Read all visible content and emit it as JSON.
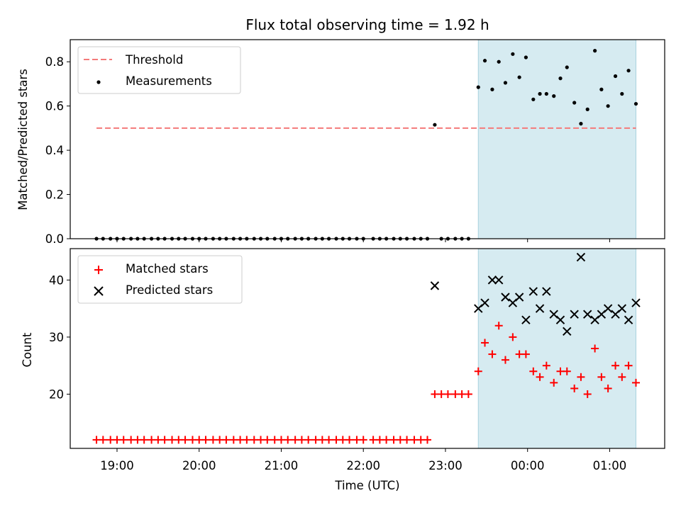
{
  "chart_data": [
    {
      "type": "scatter",
      "title": "Flux total observing time = 1.92 h",
      "xlabel": "",
      "ylabel": "Matched/Predicted stars",
      "ylim": [
        0,
        0.9
      ],
      "yticks": [
        "0.0",
        "0.2",
        "0.4",
        "0.6",
        "0.8"
      ],
      "xlim": [
        18.43,
        25.67
      ],
      "shaded_span": [
        23.4,
        25.32
      ],
      "shaded_color": "#d6ebf1",
      "legend": {
        "placement": "top-left",
        "threshold_label": "Threshold",
        "measurements_label": "Measurements"
      },
      "threshold": {
        "name": "Threshold",
        "value": 0.5,
        "x_range": [
          18.75,
          25.32
        ],
        "color": "#f47a7a"
      },
      "series": [
        {
          "name": "Measurements",
          "color": "#000000",
          "x": [
            18.75,
            18.83,
            18.92,
            19.0,
            19.08,
            19.17,
            19.25,
            19.33,
            19.42,
            19.5,
            19.58,
            19.67,
            19.75,
            19.83,
            19.92,
            20.0,
            20.08,
            20.17,
            20.25,
            20.33,
            20.42,
            20.5,
            20.58,
            20.67,
            20.75,
            20.83,
            20.92,
            21.0,
            21.08,
            21.17,
            21.25,
            21.33,
            21.42,
            21.5,
            21.58,
            21.67,
            21.75,
            21.83,
            21.92,
            22.0,
            22.12,
            22.2,
            22.28,
            22.37,
            22.45,
            22.53,
            22.62,
            22.7,
            22.78,
            22.87,
            22.95,
            23.03,
            23.12,
            23.2,
            23.28,
            23.4,
            23.48,
            23.57,
            23.65,
            23.73,
            23.82,
            23.9,
            23.98,
            24.07,
            24.15,
            24.23,
            24.32,
            24.4,
            24.48,
            24.57,
            24.65,
            24.73,
            24.82,
            24.9,
            24.98,
            25.07,
            25.15,
            25.23,
            25.32
          ],
          "y": [
            0,
            0,
            0,
            0,
            0,
            0,
            0,
            0,
            0,
            0,
            0,
            0,
            0,
            0,
            0,
            0,
            0,
            0,
            0,
            0,
            0,
            0,
            0,
            0,
            0,
            0,
            0,
            0,
            0,
            0,
            0,
            0,
            0,
            0,
            0,
            0,
            0,
            0,
            0,
            0,
            0,
            0,
            0,
            0,
            0,
            0,
            0,
            0,
            0,
            0.515,
            0,
            0,
            0,
            0,
            0,
            0.685,
            0.805,
            0.675,
            0.8,
            0.705,
            0.835,
            0.73,
            0.82,
            0.63,
            0.655,
            0.655,
            0.645,
            0.725,
            0.775,
            0.615,
            0.52,
            0.585,
            0.85,
            0.675,
            0.6,
            0.735,
            0.655,
            0.76,
            0.61
          ]
        }
      ]
    },
    {
      "type": "scatter",
      "xlabel": "Time (UTC)",
      "ylabel": "Count",
      "ylim": [
        10.5,
        45.5
      ],
      "yticks": [
        "20",
        "30",
        "40"
      ],
      "xlim": [
        18.43,
        25.67
      ],
      "xticks": [
        "19:00",
        "20:00",
        "21:00",
        "22:00",
        "23:00",
        "00:00",
        "01:00"
      ],
      "shaded_span": [
        23.4,
        25.32
      ],
      "shaded_color": "#d6ebf1",
      "legend": {
        "placement": "top-left"
      },
      "series": [
        {
          "name": "Matched stars",
          "color": "#ff0000",
          "marker": "+",
          "x": [
            18.75,
            18.83,
            18.92,
            19.0,
            19.08,
            19.17,
            19.25,
            19.33,
            19.42,
            19.5,
            19.58,
            19.67,
            19.75,
            19.83,
            19.92,
            20.0,
            20.08,
            20.17,
            20.25,
            20.33,
            20.42,
            20.5,
            20.58,
            20.67,
            20.75,
            20.83,
            20.92,
            21.0,
            21.08,
            21.17,
            21.25,
            21.33,
            21.42,
            21.5,
            21.58,
            21.67,
            21.75,
            21.83,
            21.92,
            22.0,
            22.12,
            22.2,
            22.28,
            22.37,
            22.45,
            22.53,
            22.62,
            22.7,
            22.78,
            22.87,
            22.95,
            23.03,
            23.12,
            23.2,
            23.28,
            23.4,
            23.48,
            23.57,
            23.65,
            23.73,
            23.82,
            23.9,
            23.98,
            24.07,
            24.15,
            24.23,
            24.32,
            24.4,
            24.48,
            24.57,
            24.65,
            24.73,
            24.82,
            24.9,
            24.98,
            25.07,
            25.15,
            25.23,
            25.32
          ],
          "y": [
            12,
            12,
            12,
            12,
            12,
            12,
            12,
            12,
            12,
            12,
            12,
            12,
            12,
            12,
            12,
            12,
            12,
            12,
            12,
            12,
            12,
            12,
            12,
            12,
            12,
            12,
            12,
            12,
            12,
            12,
            12,
            12,
            12,
            12,
            12,
            12,
            12,
            12,
            12,
            12,
            12,
            12,
            12,
            12,
            12,
            12,
            12,
            12,
            12,
            20,
            20,
            20,
            20,
            20,
            20,
            24,
            29,
            27,
            32,
            26,
            30,
            27,
            27,
            24,
            23,
            25,
            22,
            24,
            24,
            21,
            23,
            20,
            28,
            23,
            21,
            25,
            23,
            25,
            22
          ]
        },
        {
          "name": "Predicted stars",
          "color": "#000000",
          "marker": "x",
          "x": [
            22.87,
            23.4,
            23.48,
            23.57,
            23.65,
            23.73,
            23.82,
            23.9,
            23.98,
            24.07,
            24.15,
            24.23,
            24.32,
            24.4,
            24.48,
            24.57,
            24.65,
            24.73,
            24.82,
            24.9,
            24.98,
            25.07,
            25.15,
            25.23,
            25.32
          ],
          "y": [
            39,
            35,
            36,
            40,
            40,
            37,
            36,
            37,
            33,
            38,
            35,
            38,
            34,
            33,
            31,
            34,
            44,
            34,
            33,
            34,
            35,
            34,
            35,
            33,
            36
          ]
        }
      ]
    }
  ]
}
